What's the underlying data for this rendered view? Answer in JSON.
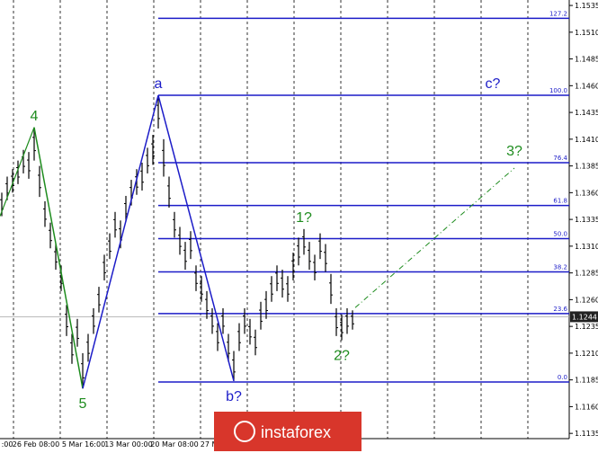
{
  "chart_data": {
    "type": "candlestick",
    "yticks": [
      {
        "value": 1.1535,
        "label": "1.1535"
      },
      {
        "value": 1.151,
        "label": "1.1510"
      },
      {
        "value": 1.1485,
        "label": "1.1485"
      },
      {
        "value": 1.146,
        "label": "1.1460"
      },
      {
        "value": 1.1435,
        "label": "1.1435"
      },
      {
        "value": 1.141,
        "label": "1.1410"
      },
      {
        "value": 1.1385,
        "label": "1.1385"
      },
      {
        "value": 1.136,
        "label": "1.1360"
      },
      {
        "value": 1.1335,
        "label": "1.1335"
      },
      {
        "value": 1.131,
        "label": "1.1310"
      },
      {
        "value": 1.1285,
        "label": "1.1285"
      },
      {
        "value": 1.126,
        "label": "1.1260"
      },
      {
        "value": 1.1235,
        "label": "1.1235"
      },
      {
        "value": 1.121,
        "label": "1.1210"
      },
      {
        "value": 1.1185,
        "label": "1.1185"
      },
      {
        "value": 1.116,
        "label": "1.1160"
      },
      {
        "value": 1.1135,
        "label": "1.1135"
      }
    ],
    "ylim": [
      1.11301,
      1.15401
    ],
    "x_labels": [
      ":00",
      "26 Feb 08:00",
      "5 Mar 16:00",
      "13 Mar 00:00",
      "20 Mar 08:00",
      "27 Ma"
    ],
    "current_price": {
      "value": 1.1244,
      "label": "1.1244"
    },
    "highs": [
      1.136,
      1.1375,
      1.1382,
      1.139,
      1.14,
      1.1398,
      1.1421,
      1.1385,
      1.1352,
      1.1332,
      1.1312,
      1.1292,
      1.1255,
      1.1228,
      1.1242,
      1.121,
      1.1228,
      1.1252,
      1.1272,
      1.1302,
      1.1322,
      1.1342,
      1.1334,
      1.1357,
      1.1372,
      1.1382,
      1.1388,
      1.1402,
      1.1414,
      1.1451,
      1.141,
      1.1375,
      1.1342,
      1.1328,
      1.1314,
      1.1324,
      1.1292,
      1.1282,
      1.1268,
      1.1252,
      1.1238,
      1.1252,
      1.1228,
      1.1212,
      1.1238,
      1.1252,
      1.1242,
      1.1232,
      1.1258,
      1.1268,
      1.1282,
      1.1292,
      1.1288,
      1.1282,
      1.1304,
      1.1318,
      1.1326,
      1.1314,
      1.1302,
      1.1322,
      1.1312,
      1.1284,
      1.1252,
      1.1246,
      1.1252,
      1.125
    ],
    "lows": [
      1.1338,
      1.1353,
      1.136,
      1.1368,
      1.1378,
      1.1373,
      1.139,
      1.1356,
      1.1328,
      1.1308,
      1.1288,
      1.1268,
      1.1226,
      1.12,
      1.1216,
      1.1177,
      1.1202,
      1.1228,
      1.1248,
      1.1278,
      1.1298,
      1.1318,
      1.1308,
      1.1333,
      1.1348,
      1.1358,
      1.1362,
      1.1378,
      1.1386,
      1.142,
      1.1375,
      1.1346,
      1.1318,
      1.1302,
      1.1288,
      1.1298,
      1.1268,
      1.1258,
      1.1242,
      1.1228,
      1.1212,
      1.1228,
      1.1202,
      1.1184,
      1.1212,
      1.1228,
      1.1218,
      1.1208,
      1.1232,
      1.1242,
      1.1258,
      1.1268,
      1.1262,
      1.1258,
      1.1278,
      1.1292,
      1.1302,
      1.1288,
      1.1278,
      1.1298,
      1.1286,
      1.1256,
      1.1226,
      1.1222,
      1.1228,
      1.1232
    ],
    "fib_levels": [
      {
        "label": "127.2",
        "price": 1.1523
      },
      {
        "label": "100.0",
        "price": 1.1451
      },
      {
        "label": "76.4",
        "price": 1.1388
      },
      {
        "label": "61.8",
        "price": 1.1348
      },
      {
        "label": "50.0",
        "price": 1.1317
      },
      {
        "label": "38.2",
        "price": 1.1286
      },
      {
        "label": "23.6",
        "price": 1.1247
      },
      {
        "label": "0.0",
        "price": 1.1183
      }
    ],
    "waves": [
      {
        "label": "4",
        "index": 6,
        "price": 1.1421,
        "color": "#1e8c1e",
        "pos": "above"
      },
      {
        "label": "5",
        "index": 15,
        "price": 1.1177,
        "color": "#1e8c1e",
        "pos": "below"
      },
      {
        "label": "a",
        "index": 29,
        "price": 1.1451,
        "color": "#1c1cc8",
        "pos": "above"
      },
      {
        "label": "b?",
        "index": 43,
        "price": 1.1184,
        "color": "#1c1cc8",
        "pos": "below"
      },
      {
        "label": "1?",
        "index": 56,
        "price": 1.1326,
        "color": "#1e8c1e",
        "pos": "above"
      },
      {
        "label": "2?",
        "index": 63,
        "price": 1.1222,
        "color": "#1e8c1e",
        "pos": "below"
      },
      {
        "label": "3?",
        "index": 95,
        "price": 1.1388,
        "color": "#1e8c1e",
        "pos": "above"
      },
      {
        "label": "c?",
        "index": 91,
        "price": 1.1451,
        "color": "#1c1cc8",
        "pos": "above"
      }
    ],
    "logo": "instaforex"
  }
}
